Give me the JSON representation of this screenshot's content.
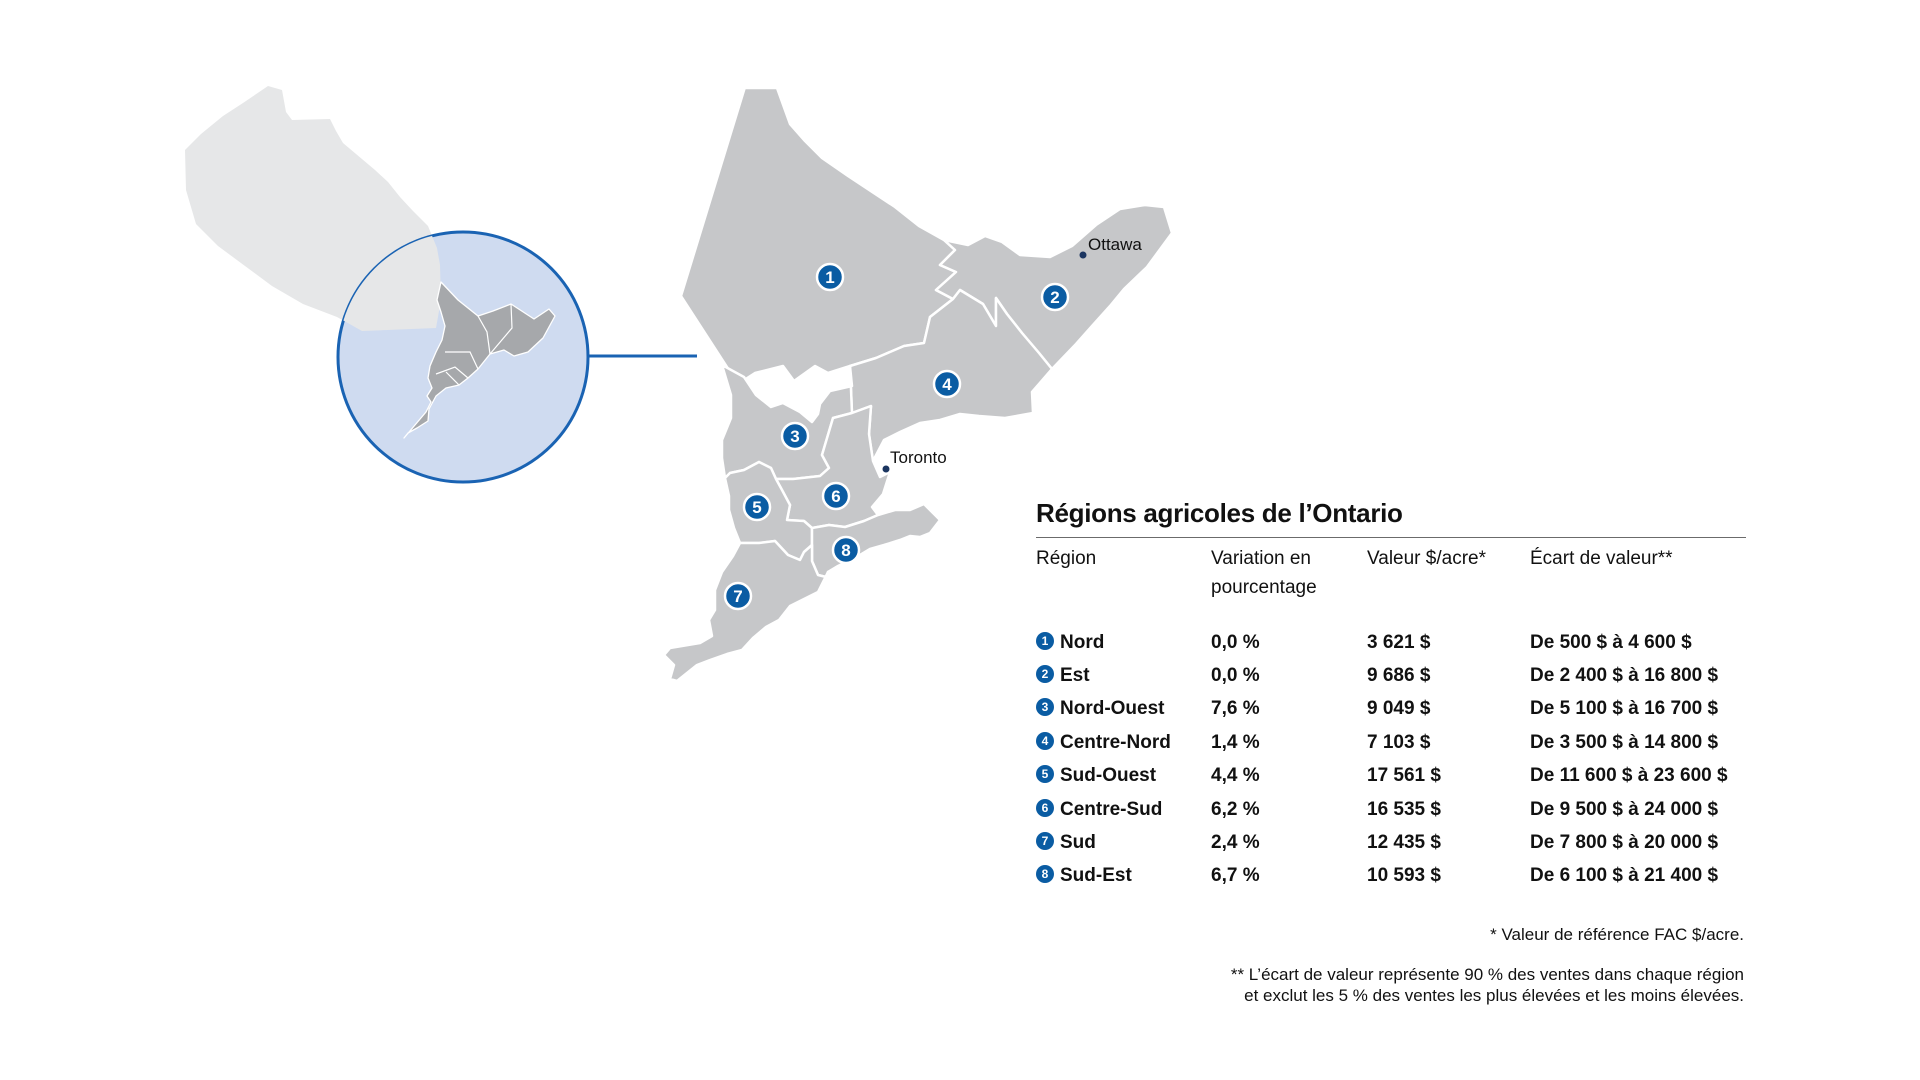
{
  "map": {
    "cities": [
      {
        "name": "Ottawa"
      },
      {
        "name": "Toronto"
      }
    ],
    "region_numbers": [
      "1",
      "2",
      "3",
      "4",
      "5",
      "6",
      "7",
      "8"
    ],
    "colors": {
      "region_fill": "#c6c7c9",
      "province_fill": "#e6e7e8",
      "inset_circle_fill": "#cfdbf0",
      "accent_blue": "#0a5ca3",
      "connector_line": "#1a63b3"
    }
  },
  "table": {
    "title": "Régions agricoles de l’Ontario",
    "headers": {
      "region": "Région",
      "pct": "Variation en pourcentage",
      "value": "Valeur $/acre*",
      "range": "Écart de valeur**"
    },
    "rows": [
      {
        "num": "1",
        "region": "Nord",
        "pct": "0,0 %",
        "value": "3 621 $",
        "range": "De 500 $ à 4 600 $"
      },
      {
        "num": "2",
        "region": "Est",
        "pct": "0,0 %",
        "value": "9 686 $",
        "range": "De 2 400 $ à 16 800 $"
      },
      {
        "num": "3",
        "region": "Nord-Ouest",
        "pct": "7,6 %",
        "value": "9 049 $",
        "range": "De 5 100 $ à 16 700 $"
      },
      {
        "num": "4",
        "region": "Centre-Nord",
        "pct": "1,4 %",
        "value": "7 103 $",
        "range": "De 3 500 $ à 14 800 $"
      },
      {
        "num": "5",
        "region": "Sud-Ouest",
        "pct": "4,4 %",
        "value": "17 561 $",
        "range": "De 11 600 $ à 23 600 $"
      },
      {
        "num": "6",
        "region": "Centre-Sud",
        "pct": "6,2 %",
        "value": "16 535 $",
        "range": "De 9 500 $ à 24 000 $"
      },
      {
        "num": "7",
        "region": "Sud",
        "pct": "2,4 %",
        "value": "12 435 $",
        "range": "De 7 800 $ à 20 000 $"
      },
      {
        "num": "8",
        "region": "Sud-Est",
        "pct": "6,7 %",
        "value": "10 593 $",
        "range": "De 6 100 $ à 21 400 $"
      }
    ]
  },
  "notes": {
    "value_note": "* Valeur de référence FAC $/acre.",
    "range_note_line1": "** L’écart de valeur représente 90 % des ventes dans chaque région",
    "range_note_line2": "et exclut les 5 % des ventes les plus élevées et les moins élevées."
  }
}
